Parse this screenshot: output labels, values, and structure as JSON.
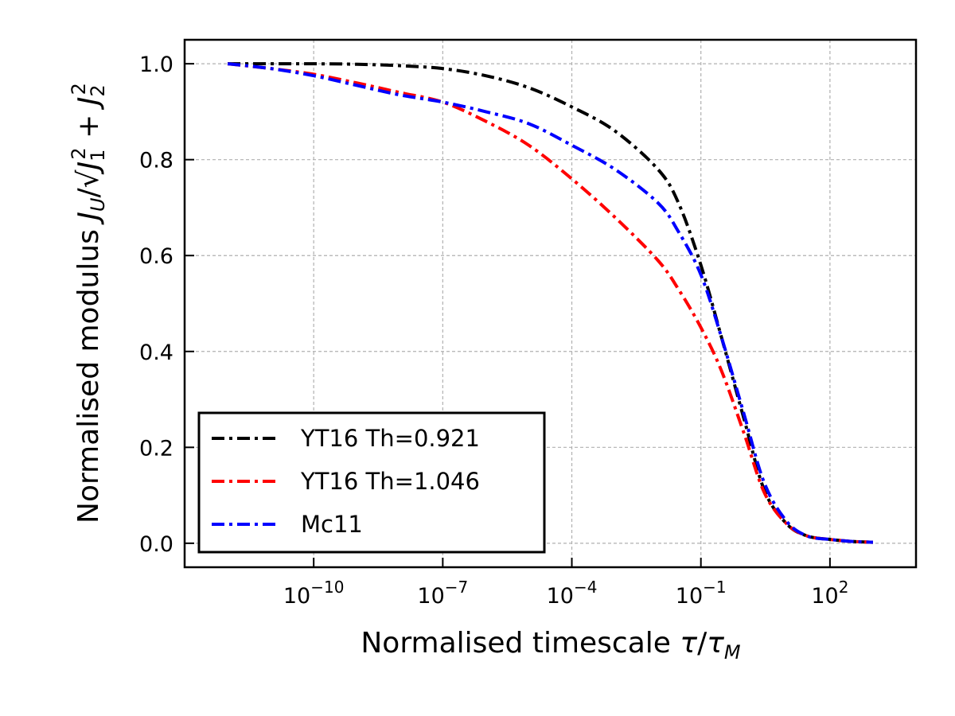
{
  "chart_data": {
    "type": "line",
    "xscale": "log",
    "xlabel": "Normalised timescale τ/τ_M",
    "ylabel": "Normalised modulus J_U/√(J_1²+J_2²)",
    "xlim": [
      1e-13,
      10000.0
    ],
    "ylim": [
      -0.05,
      1.05
    ],
    "grid": true,
    "legend_position": "lower-left",
    "x_ticks": [
      {
        "value": 1e-10,
        "base": "10",
        "exp": "−10"
      },
      {
        "value": 1e-07,
        "base": "10",
        "exp": "−7"
      },
      {
        "value": 0.0001,
        "base": "10",
        "exp": "−4"
      },
      {
        "value": 0.1,
        "base": "10",
        "exp": "−1"
      },
      {
        "value": 100,
        "base": "10",
        "exp": "2"
      }
    ],
    "y_ticks": [
      {
        "value": 0.0,
        "label": "0.0"
      },
      {
        "value": 0.2,
        "label": "0.2"
      },
      {
        "value": 0.4,
        "label": "0.4"
      },
      {
        "value": 0.6,
        "label": "0.6"
      },
      {
        "value": 0.8,
        "label": "0.8"
      },
      {
        "value": 1.0,
        "label": "1.0"
      }
    ],
    "series": [
      {
        "name": "YT16 Th=0.921",
        "color": "#000000",
        "x": [
          1e-12,
          1e-11,
          1e-10,
          1e-09,
          1e-08,
          1e-07,
          1e-06,
          1e-05,
          0.0001,
          0.001,
          0.01,
          0.03,
          0.1,
          0.3,
          1,
          3,
          10,
          30,
          100,
          300,
          1000
        ],
        "y": [
          1.0,
          1.0,
          1.0,
          0.999,
          0.996,
          0.99,
          0.975,
          0.95,
          0.91,
          0.86,
          0.78,
          0.71,
          0.58,
          0.43,
          0.26,
          0.11,
          0.04,
          0.015,
          0.008,
          0.004,
          0.002
        ]
      },
      {
        "name": "YT16 Th=1.046",
        "color": "#ff0000",
        "x": [
          1e-12,
          1e-11,
          1e-10,
          1e-09,
          1e-08,
          1e-07,
          1e-06,
          1e-05,
          0.0001,
          0.001,
          0.01,
          0.03,
          0.1,
          0.3,
          1,
          3,
          10,
          30,
          100,
          300,
          1000
        ],
        "y": [
          1.0,
          0.99,
          0.978,
          0.96,
          0.94,
          0.92,
          0.88,
          0.83,
          0.76,
          0.68,
          0.59,
          0.53,
          0.45,
          0.36,
          0.23,
          0.105,
          0.04,
          0.015,
          0.008,
          0.004,
          0.002
        ]
      },
      {
        "name": "Mc11",
        "color": "#0000ff",
        "x": [
          1e-12,
          1e-11,
          1e-10,
          1e-09,
          1e-08,
          1e-07,
          1e-06,
          1e-05,
          0.0001,
          0.001,
          0.01,
          0.03,
          0.1,
          0.3,
          1,
          3,
          10,
          30,
          100,
          300,
          1000
        ],
        "y": [
          1.0,
          0.99,
          0.975,
          0.955,
          0.935,
          0.92,
          0.9,
          0.875,
          0.83,
          0.78,
          0.71,
          0.65,
          0.56,
          0.43,
          0.27,
          0.125,
          0.045,
          0.015,
          0.008,
          0.004,
          0.002
        ]
      }
    ]
  }
}
